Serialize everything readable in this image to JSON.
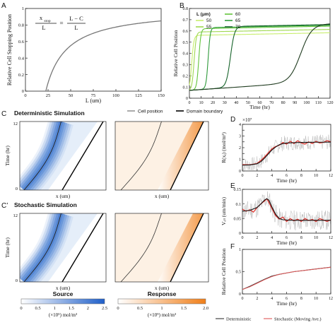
{
  "chart_data": [
    {
      "id": "A",
      "type": "line",
      "panel_label": "A",
      "xlabel": "L (um)",
      "ylabel": "Relative Cell Stopping Position",
      "xlim": [
        0,
        150
      ],
      "ylim": [
        0,
        1
      ],
      "xticks": [
        0,
        25,
        50,
        75,
        100,
        125,
        150
      ],
      "yticks": [
        0,
        0.2,
        0.4,
        0.6,
        0.8,
        1
      ],
      "formula": {
        "lhs_num": "x",
        "lhs_sub": "stop",
        "lhs_den": "L",
        "eq": "=",
        "rhs_num": "L − C",
        "rhs_den": "L"
      },
      "C": 22.5,
      "series": [
        {
          "color": "#777777"
        }
      ]
    },
    {
      "id": "B",
      "type": "line",
      "panel_label": "B",
      "xlabel": "Time (hr)",
      "ylabel": "Relative Cell Position",
      "xlim": [
        0,
        120
      ],
      "ylim": [
        0,
        0.8
      ],
      "xticks": [
        0,
        10,
        20,
        30,
        40,
        50,
        60,
        70,
        80,
        90,
        100,
        110,
        120
      ],
      "yticks": [
        0,
        0.1,
        0.2,
        0.3,
        0.4,
        0.5,
        0.6,
        0.7,
        0.8
      ],
      "legend_title": "L (μm)",
      "legend_position": "top-left",
      "series": [
        {
          "name": "50",
          "color": "#c9ee6e",
          "jump": 2,
          "plateau": 0.56
        },
        {
          "name": "55",
          "color": "#9fd84f",
          "jump": 4,
          "plateau": 0.59
        },
        {
          "name": "60",
          "color": "#63c43a",
          "jump": 8,
          "plateau": 0.62
        },
        {
          "name": "65",
          "color": "#2e9a3a",
          "jump": 16,
          "plateau": 0.63
        },
        {
          "name": "70",
          "color": "#16632a",
          "jump": 35,
          "plateau": 0.64
        },
        {
          "name": "",
          "color": "#1f3b1f",
          "jump": 95,
          "plateau": 0.66
        }
      ]
    },
    {
      "id": "C_source",
      "type": "heatmap",
      "panel_label": "C",
      "title": "Deterministic Simulation",
      "xlabel": "x (um)",
      "ylabel": "Time (hr)",
      "yticks": [
        0,
        12
      ],
      "colormap": [
        "#ffffff",
        "#1f5fc9"
      ]
    },
    {
      "id": "C_response",
      "type": "heatmap",
      "xlabel": "x (um)",
      "colormap": [
        "#ffffff",
        "#f07f1a"
      ],
      "legend": [
        {
          "name": "Cell position",
          "color": "#444444"
        },
        {
          "name": "Domain boundary",
          "color": "#000000"
        }
      ]
    },
    {
      "id": "C2_source",
      "type": "heatmap",
      "panel_label": "C’",
      "title": "Stochastic Simulation",
      "xlabel": "x (um)",
      "ylabel": "Time (hr)",
      "yticks": [
        0,
        12
      ],
      "colormap": [
        "#ffffff",
        "#1f5fc9"
      ]
    },
    {
      "id": "C2_response",
      "type": "heatmap",
      "xlabel": "x (um)",
      "colormap": [
        "#ffffff",
        "#f07f1a"
      ]
    },
    {
      "id": "colorbar_source",
      "type": "colorbar",
      "title": "Source",
      "unit": "(×10⁵) mol/m³",
      "range": [
        0,
        2.5
      ],
      "ticks": [
        "0",
        "0.5",
        "1",
        "1.5",
        "2",
        "2.5"
      ],
      "colors": [
        "#ffffff",
        "#1f5fc9"
      ]
    },
    {
      "id": "colorbar_response",
      "type": "colorbar",
      "title": "Response",
      "unit": "(×10⁹) mol/m³",
      "range": [
        0,
        2
      ],
      "ticks": [
        "0",
        "0.5",
        "1",
        "1.5",
        "2.0"
      ],
      "colors": [
        "#ffffff",
        "#f07f1a"
      ]
    },
    {
      "id": "D",
      "type": "line",
      "panel_label": "D",
      "xlabel": "Time (hr)",
      "ylabel": "R(xⱼ) (mol/m³)",
      "y_multiplier": "×10⁷",
      "xlim": [
        0,
        12
      ],
      "ylim": [
        0,
        4
      ],
      "xticks": [
        0,
        2,
        4,
        6,
        8,
        10,
        12
      ],
      "yticks": [
        0,
        0.5,
        1,
        1.5,
        2,
        2.5,
        3,
        3.5,
        4
      ],
      "ytick_labels": [
        "0",
        "",
        "1",
        "",
        "2",
        "",
        "3",
        "",
        "4"
      ],
      "series": [
        {
          "color": "#111111",
          "x": [
            0,
            1,
            2,
            2.5,
            3,
            3.5,
            4,
            4.5,
            5,
            5.5,
            6,
            7,
            8,
            9,
            10,
            11,
            12
          ],
          "y": [
            0.5,
            0.52,
            0.62,
            0.8,
            1.1,
            1.45,
            1.8,
            2.05,
            2.25,
            2.35,
            2.4,
            2.43,
            2.45,
            2.46,
            2.47,
            2.47,
            2.48
          ]
        },
        {
          "color": "#e0302a",
          "x": [
            0,
            1,
            2,
            2.5,
            3,
            3.5,
            4,
            4.5,
            5,
            5.5,
            6,
            6.5,
            7,
            7.5,
            8,
            8.5,
            9,
            9.5,
            10,
            10.5,
            11,
            11.5,
            12
          ],
          "y": [
            0.55,
            0.53,
            0.65,
            0.9,
            1.2,
            1.55,
            1.9,
            2.1,
            2.2,
            2.45,
            2.3,
            2.55,
            2.35,
            2.6,
            2.4,
            2.3,
            2.5,
            2.35,
            2.55,
            2.4,
            2.45,
            2.6,
            2.5
          ]
        },
        {
          "color": "#bbbbbb"
        }
      ]
    },
    {
      "id": "E",
      "type": "line",
      "panel_label": "E",
      "xlabel": "Time (hr)",
      "ylabel": "Vₑₗₗ (um/min)",
      "xlim": [
        0,
        12
      ],
      "ylim": [
        0,
        0.15
      ],
      "xticks": [
        0,
        2,
        4,
        6,
        8,
        10,
        12
      ],
      "yticks": [
        0,
        0.05,
        0.1,
        0.15
      ],
      "ytick_labels": [
        "0",
        "0.05",
        "0.1",
        "0.15"
      ],
      "series": [
        {
          "color": "#111111",
          "x": [
            0,
            1,
            2,
            2.5,
            3,
            3.3,
            3.6,
            4,
            4.5,
            5,
            5.5,
            6,
            7,
            8,
            9,
            10,
            11,
            12
          ],
          "y": [
            0.075,
            0.078,
            0.088,
            0.1,
            0.113,
            0.118,
            0.113,
            0.09,
            0.065,
            0.05,
            0.046,
            0.045,
            0.044,
            0.044,
            0.044,
            0.044,
            0.044,
            0.044
          ]
        },
        {
          "color": "#e0302a",
          "x": [
            0,
            0.5,
            1,
            1.5,
            2,
            2.5,
            3,
            3.3,
            3.6,
            4,
            4.5,
            5,
            5.5,
            6,
            6.5,
            7,
            7.5,
            8,
            8.5,
            9,
            9.5,
            10,
            10.5,
            11,
            11.5,
            12
          ],
          "y": [
            0.082,
            0.075,
            0.08,
            0.072,
            0.088,
            0.1,
            0.11,
            0.118,
            0.105,
            0.085,
            0.06,
            0.048,
            0.055,
            0.04,
            0.05,
            0.042,
            0.048,
            0.04,
            0.05,
            0.043,
            0.047,
            0.04,
            0.05,
            0.045,
            0.04,
            0.046
          ]
        },
        {
          "color": "#bbbbbb"
        }
      ]
    },
    {
      "id": "F",
      "type": "line",
      "panel_label": "F",
      "xlabel": "Time (hr)",
      "ylabel": "Relative Cell Position",
      "xlim": [
        0,
        12
      ],
      "ylim": [
        0,
        1
      ],
      "xticks": [
        0,
        2,
        4,
        6,
        8,
        10,
        12
      ],
      "yticks": [
        0,
        0.5,
        1
      ],
      "ytick_labels": [
        "0",
        "0.5",
        "1"
      ],
      "series": [
        {
          "name": "Deterministic",
          "color": "#333333",
          "x": [
            0,
            1,
            2,
            3,
            4,
            5,
            6,
            7,
            8,
            9,
            10,
            11,
            12
          ],
          "y": [
            0.1,
            0.17,
            0.25,
            0.33,
            0.4,
            0.44,
            0.47,
            0.5,
            0.52,
            0.54,
            0.56,
            0.58,
            0.6
          ]
        },
        {
          "name": "Stochastic (Moving Ave.)",
          "color": "#e05858",
          "x": [
            0,
            1,
            2,
            3,
            4,
            5,
            6,
            7,
            8,
            9,
            10,
            11,
            12
          ],
          "y": [
            0.1,
            0.16,
            0.24,
            0.32,
            0.39,
            0.44,
            0.47,
            0.5,
            0.52,
            0.54,
            0.56,
            0.58,
            0.6
          ]
        }
      ]
    }
  ]
}
